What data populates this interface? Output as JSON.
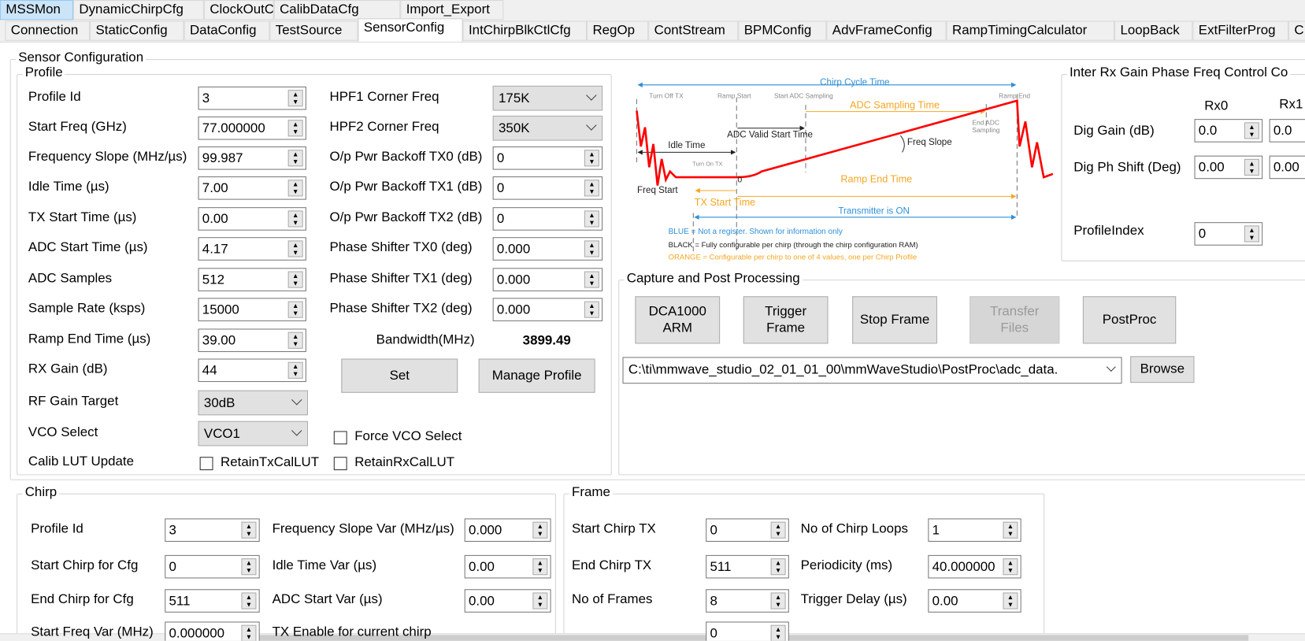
{
  "tabs_top": [
    "MSSMon",
    "DynamicChirpCfg",
    "ClockOutCfg",
    "CalibDataCfg",
    "Import_Export"
  ],
  "tabs_main": [
    "Connection",
    "StaticConfig",
    "DataConfig",
    "TestSource",
    "SensorConfig",
    "IntChirpBlkCtlCfg",
    "RegOp",
    "ContStream",
    "BPMConfig",
    "AdvFrameConfig",
    "RampTimingCalculator",
    "LoopBack",
    "ExtFilterProg",
    "C"
  ],
  "selected_top": "MSSMon",
  "selected_main": "SensorConfig",
  "sensor": {
    "title": "Sensor Configuration",
    "profile": {
      "title": "Profile",
      "left": [
        {
          "label": "Profile Id",
          "value": "3",
          "kind": "spin"
        },
        {
          "label": "Start Freq (GHz)",
          "value": "77.000000",
          "kind": "spin"
        },
        {
          "label": "Frequency Slope (MHz/µs)",
          "value": "99.987",
          "kind": "spin"
        },
        {
          "label": "Idle Time (µs)",
          "value": "7.00",
          "kind": "spin"
        },
        {
          "label": "TX Start Time (µs)",
          "value": "0.00",
          "kind": "spin"
        },
        {
          "label": "ADC Start Time (µs)",
          "value": "4.17",
          "kind": "spin"
        },
        {
          "label": "ADC Samples",
          "value": "512",
          "kind": "spin"
        },
        {
          "label": "Sample Rate (ksps)",
          "value": "15000",
          "kind": "spin"
        },
        {
          "label": "Ramp End Time (µs)",
          "value": "39.00",
          "kind": "spin"
        },
        {
          "label": "RX Gain (dB)",
          "value": "44",
          "kind": "spin"
        },
        {
          "label": "RF Gain Target",
          "value": "30dB",
          "kind": "select"
        },
        {
          "label": "VCO Select",
          "value": "VCO1",
          "kind": "select"
        }
      ],
      "right": [
        {
          "label": "HPF1 Corner Freq",
          "value": "175K",
          "kind": "select"
        },
        {
          "label": "HPF2 Corner Freq",
          "value": "350K",
          "kind": "select"
        },
        {
          "label": "O/p Pwr Backoff TX0 (dB)",
          "value": "0",
          "kind": "spin"
        },
        {
          "label": "O/p Pwr Backoff TX1 (dB)",
          "value": "0",
          "kind": "spin"
        },
        {
          "label": "O/p Pwr Backoff TX2 (dB)",
          "value": "0",
          "kind": "spin"
        },
        {
          "label": "Phase Shifter TX0 (deg)",
          "value": "0.000",
          "kind": "spin"
        },
        {
          "label": "Phase Shifter TX1 (deg)",
          "value": "0.000",
          "kind": "spin"
        },
        {
          "label": "Phase Shifter TX2 (deg)",
          "value": "0.000",
          "kind": "spin"
        }
      ],
      "bandwidth_label": "Bandwidth(MHz)",
      "bandwidth_value": "3899.49",
      "set_label": "Set",
      "manage_label": "Manage Profile",
      "force_vco_label": "Force VCO Select",
      "force_vco_checked": false,
      "calib_label": "Calib LUT Update",
      "retain_tx_label": "RetainTxCalLUT",
      "retain_tx_checked": false,
      "retain_rx_label": "RetainRxCalLUT",
      "retain_rx_checked": false
    }
  },
  "diagram": {
    "chirp_cycle": "Chirp Cycle Time",
    "turn_off_tx": "Turn Off TX",
    "ramp_start": "Ramp Start",
    "start_adc": "Start ADC Sampling",
    "ramp_end": "Ramp End",
    "adc_sampling_time": "ADC Sampling Time",
    "end_adc_1": "End ADC",
    "end_adc_2": "Sampling",
    "adc_valid": "ADC Valid Start Time",
    "idle_time": "Idle Time",
    "freq_slope": "Freq Slope",
    "turn_on_tx": "Turn On TX",
    "zero": "0",
    "ramp_end_time": "Ramp End Time",
    "freq_start": "Freq Start",
    "tx_start_time": "TX Start Time",
    "tx_on": "Transmitter is ON",
    "legend_blue": "BLUE = Not a register. Shown for information only",
    "legend_black": "BLACK = Fully configurable per chirp (through the chirp configuration RAM)",
    "legend_orange": "ORANGE = Configurable per chirp to one of 4 values, one per Chirp Profile",
    "colors": {
      "blue": "#2f8fd8",
      "orange": "#f5a623",
      "red": "#ff0000",
      "black": "#222222"
    }
  },
  "inter_rx": {
    "title": "Inter Rx Gain Phase Freq Control Co",
    "rx0": "Rx0",
    "rx1": "Rx1",
    "dig_gain_label": "Dig Gain (dB)",
    "dig_gain": [
      "0.0",
      "0.0"
    ],
    "dig_ph_label": "Dig Ph Shift (Deg)",
    "dig_ph": [
      "0.00",
      "0.00"
    ],
    "profile_index_label": "ProfileIndex",
    "profile_index": "0"
  },
  "capture": {
    "title": "Capture and Post Processing",
    "dca_label": "DCA1000\nARM",
    "trigger_label": "Trigger\nFrame",
    "stop_label": "Stop Frame",
    "transfer_label": "Transfer\nFiles",
    "postproc_label": "PostProc",
    "path": "C:\\ti\\mmwave_studio_02_01_01_00\\mmWaveStudio\\PostProc\\adc_data.",
    "browse_label": "Browse"
  },
  "chirp": {
    "title": "Chirp",
    "left": [
      {
        "label": "Profile Id",
        "value": "3"
      },
      {
        "label": "Start Chirp for Cfg",
        "value": "0"
      },
      {
        "label": "End Chirp for Cfg",
        "value": "511"
      },
      {
        "label": "Start Freq Var (MHz)",
        "value": "0.000000"
      }
    ],
    "right": [
      {
        "label": "Frequency Slope Var (MHz/µs)",
        "value": "0.000"
      },
      {
        "label": "Idle Time Var (µs)",
        "value": "0.00"
      },
      {
        "label": "ADC Start Var (µs)",
        "value": "0.00"
      },
      {
        "label": "TX Enable for current chirp",
        "value": null
      }
    ]
  },
  "frame": {
    "title": "Frame",
    "left": [
      {
        "label": "Start Chirp TX",
        "value": "0"
      },
      {
        "label": "End Chirp TX",
        "value": "511"
      },
      {
        "label": "No of Frames",
        "value": "8"
      },
      {
        "label": "",
        "value": "0"
      }
    ],
    "right": [
      {
        "label": "No of Chirp Loops",
        "value": "1"
      },
      {
        "label": "Periodicity (ms)",
        "value": "40.000000"
      },
      {
        "label": "Trigger Delay (µs)",
        "value": "0.00"
      }
    ]
  }
}
